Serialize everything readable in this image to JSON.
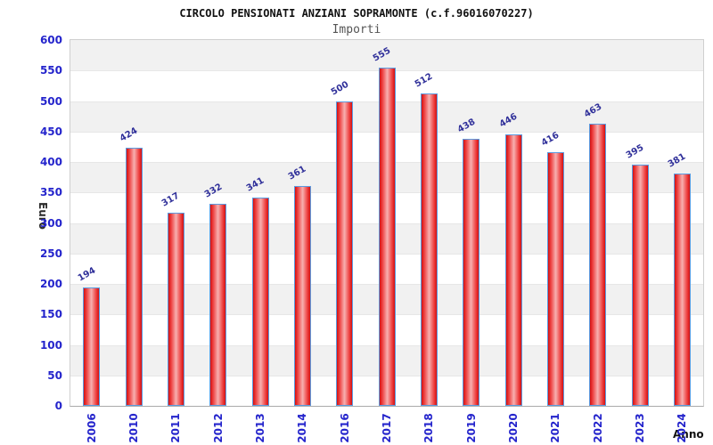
{
  "chart_data": {
    "type": "bar",
    "title": "CIRCOLO PENSIONATI ANZIANI SOPRAMONTE (c.f.96016070227)",
    "subtitle": "Importi",
    "xlabel": "Anno",
    "ylabel": "Euro",
    "categories": [
      "2006",
      "2010",
      "2011",
      "2012",
      "2013",
      "2014",
      "2016",
      "2017",
      "2018",
      "2019",
      "2020",
      "2021",
      "2022",
      "2023",
      "2024"
    ],
    "values": [
      194,
      424,
      317,
      332,
      341,
      361,
      500,
      555,
      512,
      438,
      446,
      416,
      463,
      395,
      381
    ],
    "ylim": [
      0,
      600
    ],
    "ytick_step": 50,
    "yticks": [
      0,
      50,
      100,
      150,
      200,
      250,
      300,
      350,
      400,
      450,
      500,
      550,
      600
    ],
    "legend": "none",
    "grid": "horizontal alternating bands of 50 units, gray band at top (600-550)",
    "colors": {
      "bar_edge_red": "#d31111",
      "bar_center_pink": "#f7b0b0",
      "bar_border_blue": "#5b9be0",
      "axis_tick_blue": "#2424cc",
      "value_label_navy": "#30309a",
      "band_gray": "#f1f1f1",
      "title_black": "#111111",
      "subtitle_gray": "#555555"
    }
  }
}
